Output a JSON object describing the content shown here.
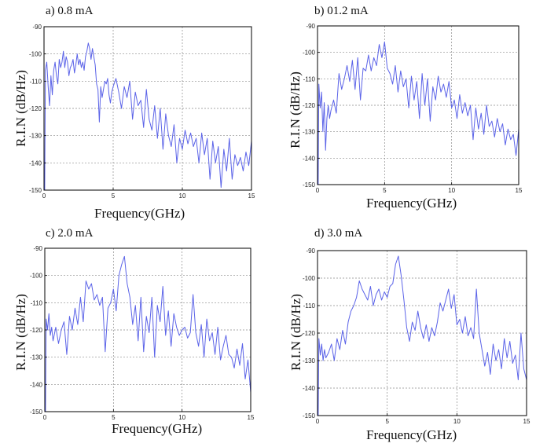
{
  "colors": {
    "trace": "#5b63e8",
    "frame": "#000000",
    "grid": "#8a8a8a"
  },
  "chart_data": [
    {
      "type": "line",
      "panel_label": "a) 0.8 mA",
      "xlabel": "Frequency(GHz)",
      "ylabel": "R.I.N (dB/Hz)",
      "xlim": [
        0,
        15
      ],
      "ylim": [
        -150,
        -90
      ],
      "xticks": [
        0,
        5,
        10,
        15
      ],
      "xtick_labels": [
        "0",
        "5",
        "10",
        "15"
      ],
      "yticks": [
        -150,
        -140,
        -130,
        -120,
        -110,
        -100,
        -90
      ],
      "ytick_labels": [
        "-150",
        "-140",
        "-130",
        "-120",
        "-110",
        "-100",
        "-90"
      ],
      "grid": true,
      "series": [
        {
          "x": [
            0,
            0.05,
            0.1,
            0.2,
            0.3,
            0.4,
            0.5,
            0.6,
            0.7,
            0.8,
            0.9,
            1.0,
            1.1,
            1.2,
            1.3,
            1.4,
            1.5,
            1.6,
            1.7,
            1.8,
            1.9,
            2.0,
            2.1,
            2.2,
            2.3,
            2.4,
            2.5,
            2.6,
            2.7,
            2.8,
            2.9,
            3.0,
            3.1,
            3.2,
            3.3,
            3.4,
            3.5,
            3.6,
            3.7,
            3.8,
            3.9,
            4.0,
            4.1,
            4.2,
            4.3,
            4.4,
            4.5,
            4.6,
            4.7,
            4.8,
            4.9,
            5.0,
            5.2,
            5.4,
            5.6,
            5.8,
            6.0,
            6.2,
            6.4,
            6.6,
            6.8,
            7.0,
            7.2,
            7.4,
            7.6,
            7.8,
            8.0,
            8.2,
            8.4,
            8.6,
            8.8,
            9.0,
            9.2,
            9.4,
            9.6,
            9.8,
            10.0,
            10.2,
            10.4,
            10.6,
            10.8,
            11.0,
            11.2,
            11.4,
            11.6,
            11.8,
            12.0,
            12.2,
            12.4,
            12.6,
            12.8,
            13.0,
            13.2,
            13.4,
            13.6,
            13.8,
            14.0,
            14.2,
            14.4,
            14.6,
            14.8,
            15.0
          ],
          "y": [
            -150,
            -150,
            -106,
            -103,
            -112,
            -119,
            -108,
            -115,
            -106,
            -103,
            -108,
            -111,
            -102,
            -105,
            -103,
            -99,
            -105,
            -101,
            -103,
            -108,
            -105,
            -104,
            -102,
            -107,
            -104,
            -100,
            -104,
            -102,
            -105,
            -103,
            -106,
            -101,
            -99,
            -96,
            -98,
            -102,
            -98,
            -101,
            -104,
            -111,
            -113,
            -125,
            -112,
            -116,
            -113,
            -110,
            -111,
            -109,
            -115,
            -118,
            -114,
            -112,
            -109,
            -114,
            -120,
            -112,
            -116,
            -110,
            -124,
            -114,
            -119,
            -117,
            -127,
            -113,
            -124,
            -128,
            -119,
            -131,
            -120,
            -135,
            -122,
            -130,
            -134,
            -126,
            -140,
            -131,
            -135,
            -128,
            -133,
            -129,
            -134,
            -131,
            -140,
            -129,
            -137,
            -131,
            -146,
            -132,
            -140,
            -134,
            -149,
            -135,
            -143,
            -131,
            -146,
            -137,
            -141,
            -138,
            -143,
            -136,
            -141,
            -132
          ]
        }
      ]
    },
    {
      "type": "line",
      "panel_label": "b) 01.2 mA",
      "xlabel": "Frequency(GHz)",
      "ylabel": "R.I.N (dB/Hz)",
      "xlim": [
        0,
        15
      ],
      "ylim": [
        -150,
        -90
      ],
      "xticks": [
        0,
        5,
        10,
        15
      ],
      "xtick_labels": [
        "0",
        "5",
        "10",
        "15"
      ],
      "yticks": [
        -150,
        -140,
        -130,
        -120,
        -110,
        -100,
        -90
      ],
      "ytick_labels": [
        "-150",
        "-140",
        "-130",
        "-120",
        "-110",
        "-100",
        "-90"
      ],
      "grid": true,
      "series": [
        {
          "x": [
            0,
            0.05,
            0.1,
            0.2,
            0.3,
            0.4,
            0.5,
            0.6,
            0.7,
            0.8,
            0.9,
            1.0,
            1.2,
            1.4,
            1.6,
            1.8,
            2.0,
            2.2,
            2.4,
            2.6,
            2.8,
            3.0,
            3.2,
            3.4,
            3.6,
            3.8,
            4.0,
            4.2,
            4.4,
            4.6,
            4.8,
            5.0,
            5.2,
            5.4,
            5.6,
            5.8,
            6.0,
            6.2,
            6.4,
            6.6,
            6.8,
            7.0,
            7.2,
            7.4,
            7.6,
            7.8,
            8.0,
            8.2,
            8.4,
            8.6,
            8.8,
            9.0,
            9.2,
            9.4,
            9.6,
            9.8,
            10.0,
            10.2,
            10.4,
            10.6,
            10.8,
            11.0,
            11.2,
            11.4,
            11.6,
            11.8,
            12.0,
            12.2,
            12.4,
            12.6,
            12.8,
            13.0,
            13.2,
            13.4,
            13.6,
            13.8,
            14.0,
            14.2,
            14.4,
            14.6,
            14.8,
            15.0
          ],
          "y": [
            -150,
            -150,
            -112,
            -121,
            -115,
            -130,
            -119,
            -137,
            -125,
            -120,
            -125,
            -122,
            -118,
            -123,
            -108,
            -114,
            -110,
            -105,
            -111,
            -103,
            -114,
            -102,
            -118,
            -106,
            -107,
            -101,
            -107,
            -102,
            -105,
            -97,
            -102,
            -96,
            -106,
            -108,
            -112,
            -105,
            -115,
            -107,
            -113,
            -110,
            -121,
            -109,
            -118,
            -111,
            -125,
            -108,
            -120,
            -110,
            -126,
            -113,
            -118,
            -109,
            -115,
            -112,
            -117,
            -111,
            -121,
            -118,
            -125,
            -116,
            -123,
            -119,
            -124,
            -120,
            -133,
            -121,
            -129,
            -123,
            -131,
            -120,
            -128,
            -126,
            -132,
            -125,
            -130,
            -127,
            -135,
            -129,
            -133,
            -131,
            -139,
            -129
          ]
        }
      ]
    },
    {
      "type": "line",
      "panel_label": "c) 2.0 mA",
      "xlabel": "Frequency(GHz)",
      "ylabel": "R.I.N (dB/Hz)",
      "xlim": [
        0,
        15
      ],
      "ylim": [
        -150,
        -90
      ],
      "xticks": [
        0,
        5,
        10,
        15
      ],
      "xtick_labels": [
        "0",
        "5",
        "10",
        "15"
      ],
      "yticks": [
        -150,
        -140,
        -130,
        -120,
        -110,
        -100,
        -90
      ],
      "ytick_labels": [
        "-150",
        "-140",
        "-130",
        "-120",
        "-110",
        "-100",
        "-90"
      ],
      "grid": true,
      "series": [
        {
          "x": [
            0,
            0.05,
            0.1,
            0.2,
            0.3,
            0.4,
            0.5,
            0.6,
            0.8,
            1.0,
            1.2,
            1.4,
            1.6,
            1.8,
            2.0,
            2.2,
            2.4,
            2.6,
            2.8,
            3.0,
            3.2,
            3.4,
            3.6,
            3.8,
            4.0,
            4.2,
            4.4,
            4.6,
            4.8,
            5.0,
            5.2,
            5.4,
            5.6,
            5.8,
            6.0,
            6.2,
            6.4,
            6.6,
            6.8,
            7.0,
            7.2,
            7.4,
            7.6,
            7.8,
            8.0,
            8.2,
            8.4,
            8.6,
            8.8,
            9.0,
            9.2,
            9.4,
            9.6,
            9.8,
            10.0,
            10.2,
            10.4,
            10.6,
            10.8,
            11.0,
            11.2,
            11.4,
            11.6,
            11.8,
            12.0,
            12.2,
            12.4,
            12.6,
            12.8,
            13.0,
            13.2,
            13.4,
            13.6,
            13.8,
            14.0,
            14.2,
            14.4,
            14.6,
            14.8,
            15.0
          ],
          "y": [
            -150,
            -150,
            -116,
            -120,
            -114,
            -122,
            -119,
            -124,
            -119,
            -125,
            -120,
            -117,
            -129,
            -115,
            -120,
            -112,
            -118,
            -108,
            -117,
            -102,
            -105,
            -103,
            -109,
            -107,
            -111,
            -108,
            -128,
            -112,
            -110,
            -105,
            -113,
            -100,
            -96,
            -93,
            -103,
            -108,
            -118,
            -111,
            -124,
            -108,
            -128,
            -115,
            -121,
            -108,
            -130,
            -111,
            -117,
            -104,
            -122,
            -113,
            -126,
            -114,
            -119,
            -122,
            -120,
            -119,
            -123,
            -121,
            -107,
            -121,
            -126,
            -118,
            -130,
            -116,
            -124,
            -121,
            -129,
            -119,
            -131,
            -126,
            -122,
            -129,
            -130,
            -134,
            -127,
            -133,
            -125,
            -138,
            -131,
            -143
          ]
        }
      ]
    },
    {
      "type": "line",
      "panel_label": "d) 3.0 mA",
      "xlabel": "Frequency(GHz)",
      "ylabel": "R.I.N (dB/Hz)",
      "xlim": [
        0,
        15
      ],
      "ylim": [
        -150,
        -90
      ],
      "xticks": [
        0,
        5,
        10,
        15
      ],
      "xtick_labels": [
        "0",
        "5",
        "10",
        "15"
      ],
      "yticks": [
        -150,
        -140,
        -130,
        -120,
        -110,
        -100,
        -90
      ],
      "ytick_labels": [
        "-150",
        "-140",
        "-130",
        "-120",
        "-110",
        "-100",
        "-90"
      ],
      "grid": true,
      "series": [
        {
          "x": [
            0,
            0.05,
            0.1,
            0.2,
            0.3,
            0.4,
            0.5,
            0.6,
            0.8,
            1.0,
            1.2,
            1.4,
            1.6,
            1.8,
            2.0,
            2.2,
            2.4,
            2.6,
            2.8,
            3.0,
            3.2,
            3.4,
            3.6,
            3.8,
            4.0,
            4.2,
            4.4,
            4.6,
            4.8,
            5.0,
            5.2,
            5.4,
            5.6,
            5.8,
            6.0,
            6.2,
            6.4,
            6.6,
            6.8,
            7.0,
            7.2,
            7.4,
            7.6,
            7.8,
            8.0,
            8.2,
            8.4,
            8.6,
            8.8,
            9.0,
            9.2,
            9.4,
            9.6,
            9.8,
            10.0,
            10.2,
            10.4,
            10.6,
            10.8,
            11.0,
            11.2,
            11.4,
            11.6,
            11.8,
            12.0,
            12.2,
            12.4,
            12.6,
            12.8,
            13.0,
            13.2,
            13.4,
            13.6,
            13.8,
            14.0,
            14.2,
            14.4,
            14.6,
            14.8,
            15.0
          ],
          "y": [
            -150,
            -150,
            -122,
            -128,
            -124,
            -130,
            -126,
            -129,
            -127,
            -124,
            -130,
            -122,
            -126,
            -119,
            -124,
            -116,
            -112,
            -110,
            -107,
            -101,
            -104,
            -106,
            -108,
            -103,
            -110,
            -106,
            -104,
            -108,
            -105,
            -107,
            -103,
            -102,
            -95,
            -92,
            -99,
            -108,
            -118,
            -123,
            -116,
            -119,
            -112,
            -118,
            -122,
            -117,
            -123,
            -118,
            -121,
            -116,
            -109,
            -112,
            -108,
            -104,
            -111,
            -106,
            -117,
            -115,
            -120,
            -114,
            -121,
            -118,
            -122,
            -104,
            -120,
            -126,
            -132,
            -127,
            -135,
            -124,
            -130,
            -126,
            -133,
            -122,
            -129,
            -123,
            -131,
            -128,
            -137,
            -120,
            -133,
            -137
          ]
        }
      ]
    }
  ]
}
